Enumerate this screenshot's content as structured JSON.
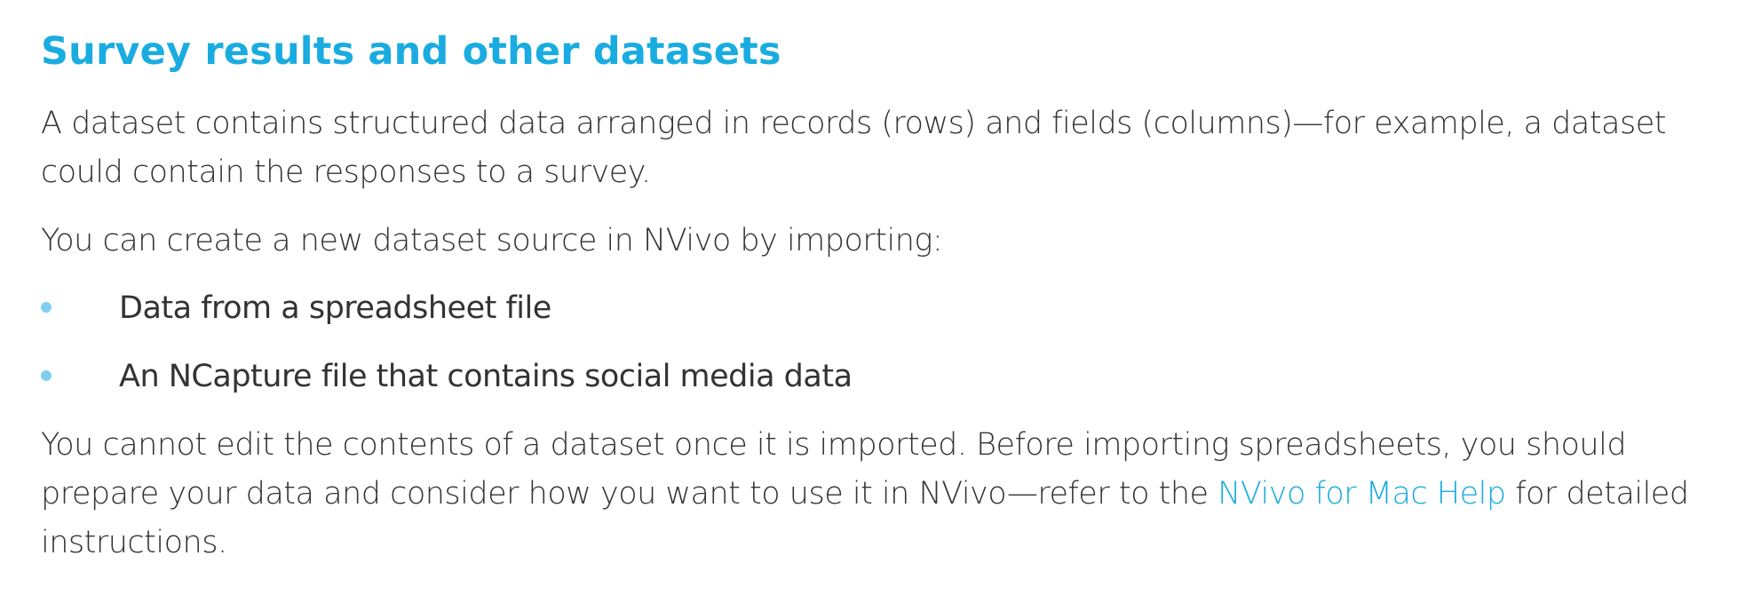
{
  "heading": "Survey results and other datasets",
  "paragraph1": "A dataset contains structured data arranged in records (rows) and fields (columns)—for example, a dataset could contain the responses to a survey.",
  "paragraph2": "You can create a new dataset source in NVivo by importing:",
  "list": {
    "items": [
      {
        "text": "Data from a spreadsheet file"
      },
      {
        "text": "An NCapture file that contains social media data"
      }
    ]
  },
  "paragraph3": {
    "before_link": "You cannot edit the contents of a dataset once it is imported. Before importing spreadsheets, you should prepare your data and consider how you want to use it in NVivo—refer to the ",
    "link_text": "NVivo for Mac Help",
    "after_link": " for detailed instructions."
  },
  "colors": {
    "accent": "#1AACE0",
    "bullet": "#7FD0F0",
    "body_text": "#333333"
  }
}
